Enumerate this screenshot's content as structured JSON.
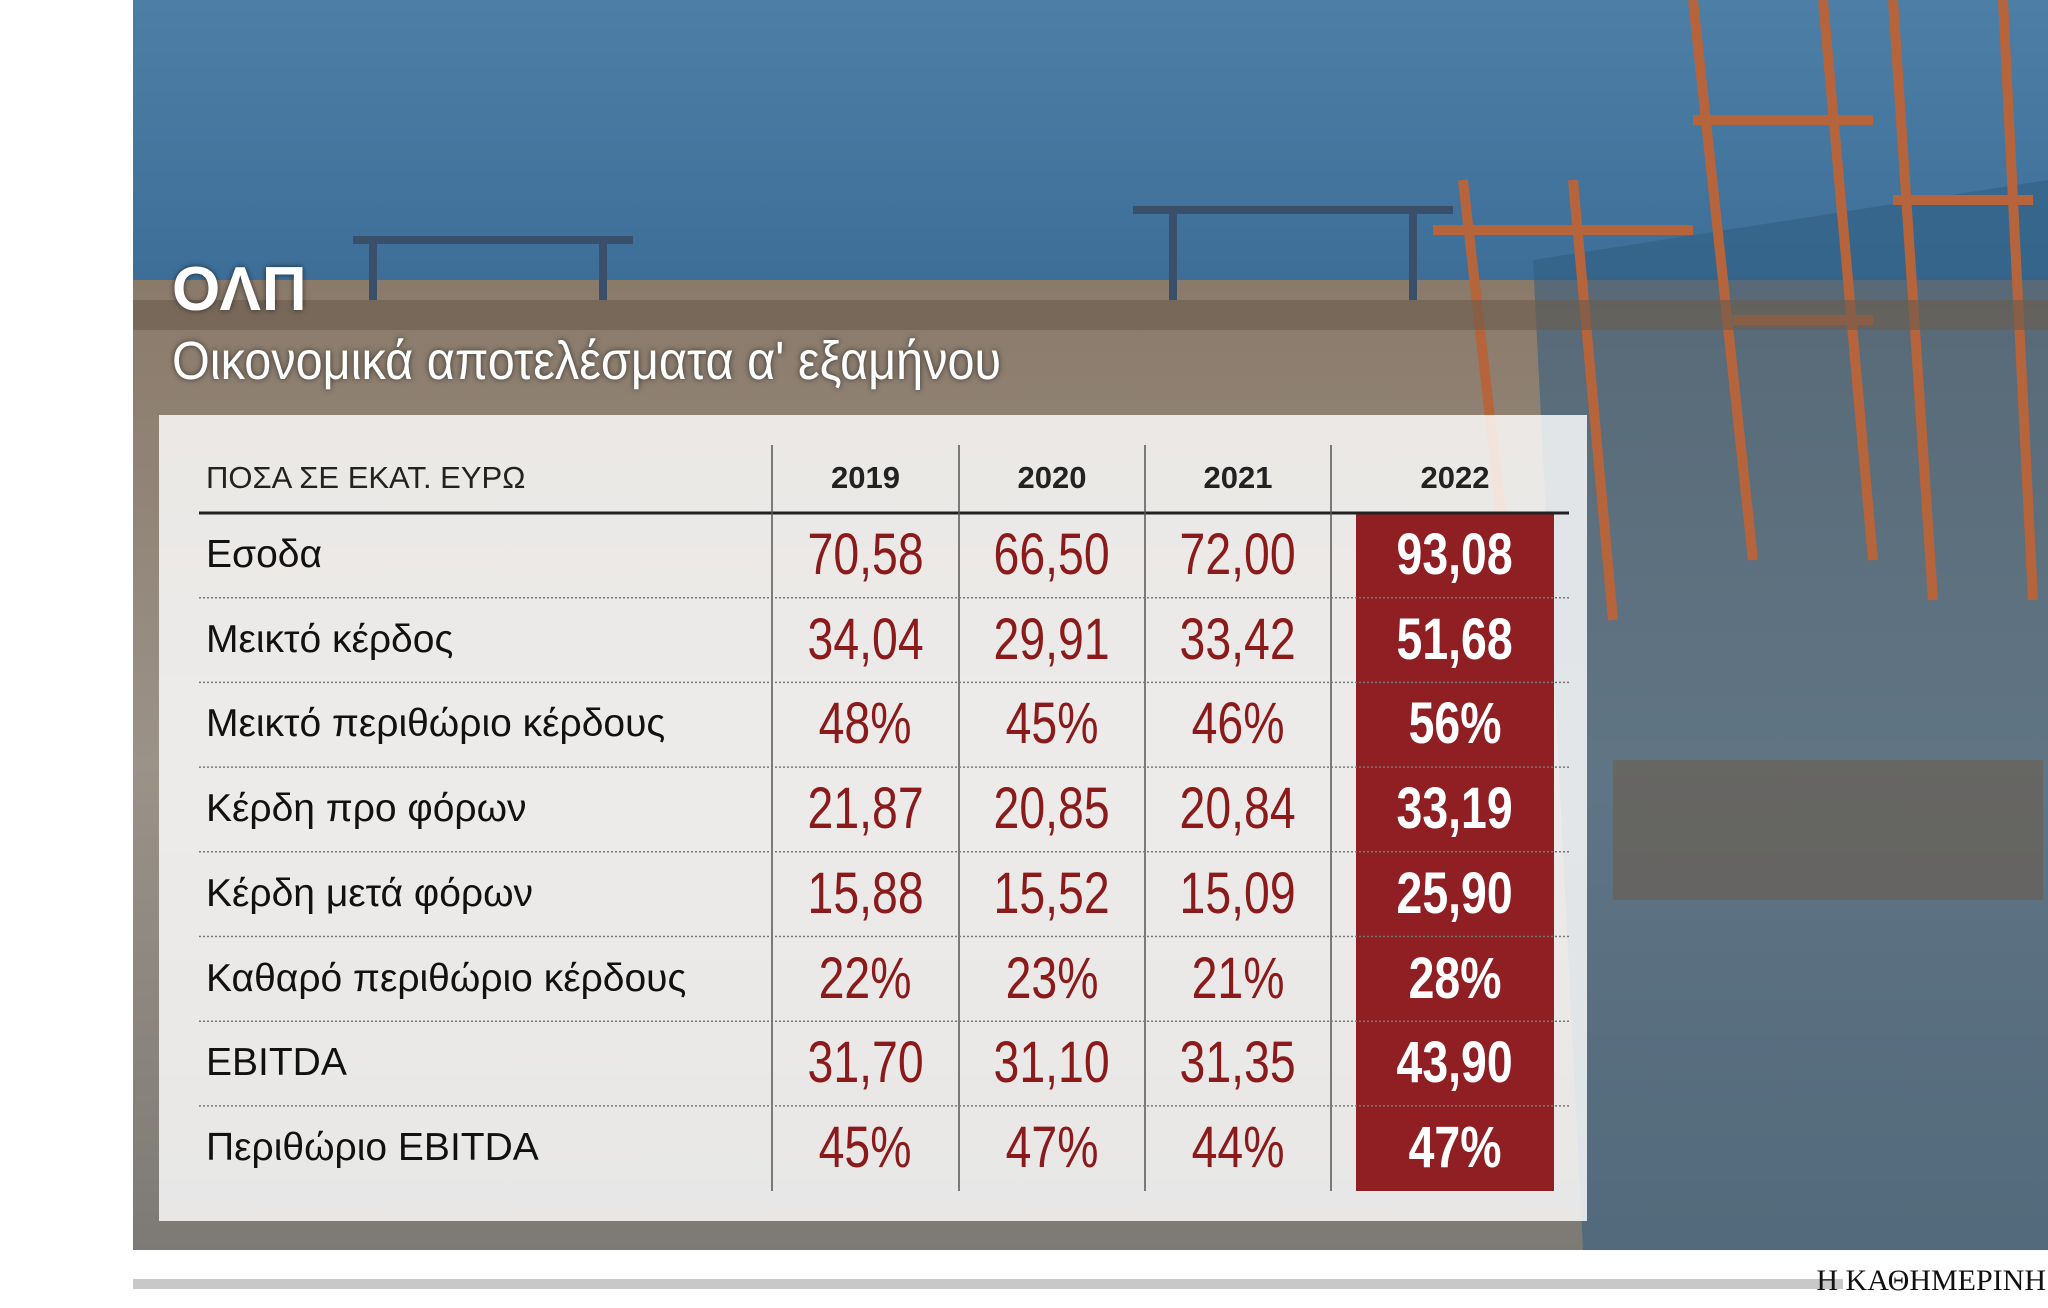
{
  "header": {
    "title": "ΟΛΠ",
    "subtitle": "Οικονομικά αποτελέσματα α' εξαμήνου"
  },
  "table": {
    "columns": [
      "ΠΟΣΑ ΣΕ ΕΚΑΤ. ΕΥΡΩ",
      "2019",
      "2020",
      "2021",
      "2022"
    ],
    "rows": [
      [
        "Εσοδα",
        "70,58",
        "66,50",
        "72,00",
        "93,08"
      ],
      [
        "Μεικτό κέρδος",
        "34,04",
        "29,91",
        "33,42",
        "51,68"
      ],
      [
        "Μεικτό περιθώριο κέρδους",
        "48%",
        "45%",
        "46%",
        "56%"
      ],
      [
        "Κέρδη προ φόρων",
        "21,87",
        "20,85",
        "20,84",
        "33,19"
      ],
      [
        "Κέρδη μετά φόρων",
        "15,88",
        "15,52",
        "15,09",
        "25,90"
      ],
      [
        "Καθαρό περιθώριο κέρδους",
        "22%",
        "23%",
        "21%",
        "28%"
      ],
      [
        "EBITDA",
        "31,70",
        "31,10",
        "31,35",
        "43,90"
      ],
      [
        "Περιθώριο EBITDA",
        "45%",
        "47%",
        "44%",
        "47%"
      ]
    ]
  },
  "footer": {
    "source": "Η ΚΑΘΗΜΕΡΙΝΗ"
  }
}
